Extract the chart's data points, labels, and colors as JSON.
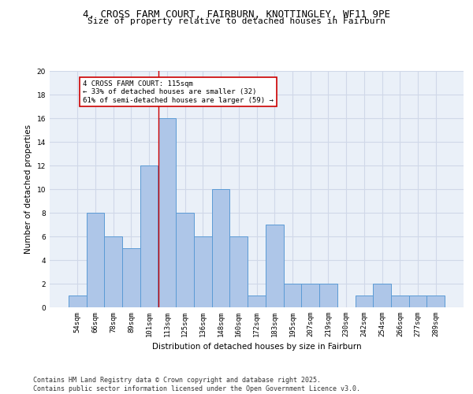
{
  "title_line1": "4, CROSS FARM COURT, FAIRBURN, KNOTTINGLEY, WF11 9PE",
  "title_line2": "Size of property relative to detached houses in Fairburn",
  "xlabel": "Distribution of detached houses by size in Fairburn",
  "ylabel": "Number of detached properties",
  "categories": [
    "54sqm",
    "66sqm",
    "78sqm",
    "89sqm",
    "101sqm",
    "113sqm",
    "125sqm",
    "136sqm",
    "148sqm",
    "160sqm",
    "172sqm",
    "183sqm",
    "195sqm",
    "207sqm",
    "219sqm",
    "230sqm",
    "242sqm",
    "254sqm",
    "266sqm",
    "277sqm",
    "289sqm"
  ],
  "values": [
    1,
    8,
    6,
    5,
    12,
    16,
    8,
    6,
    10,
    6,
    1,
    7,
    2,
    2,
    2,
    0,
    1,
    2,
    1,
    1,
    1
  ],
  "bar_color": "#aec6e8",
  "bar_edge_color": "#5b9bd5",
  "grid_color": "#d0d8e8",
  "background_color": "#eaf0f8",
  "vline_x_index": 5,
  "vline_color": "#cc0000",
  "annotation_line1": "4 CROSS FARM COURT: 115sqm",
  "annotation_line2": "← 33% of detached houses are smaller (32)",
  "annotation_line3": "61% of semi-detached houses are larger (59) →",
  "annotation_box_color": "#ffffff",
  "annotation_box_edge": "#cc0000",
  "ylim": [
    0,
    20
  ],
  "yticks": [
    0,
    2,
    4,
    6,
    8,
    10,
    12,
    14,
    16,
    18,
    20
  ],
  "footer_line1": "Contains HM Land Registry data © Crown copyright and database right 2025.",
  "footer_line2": "Contains public sector information licensed under the Open Government Licence v3.0.",
  "title_fontsize": 9,
  "subtitle_fontsize": 8,
  "axis_label_fontsize": 7.5,
  "tick_fontsize": 6.5,
  "annotation_fontsize": 6.5,
  "footer_fontsize": 6
}
